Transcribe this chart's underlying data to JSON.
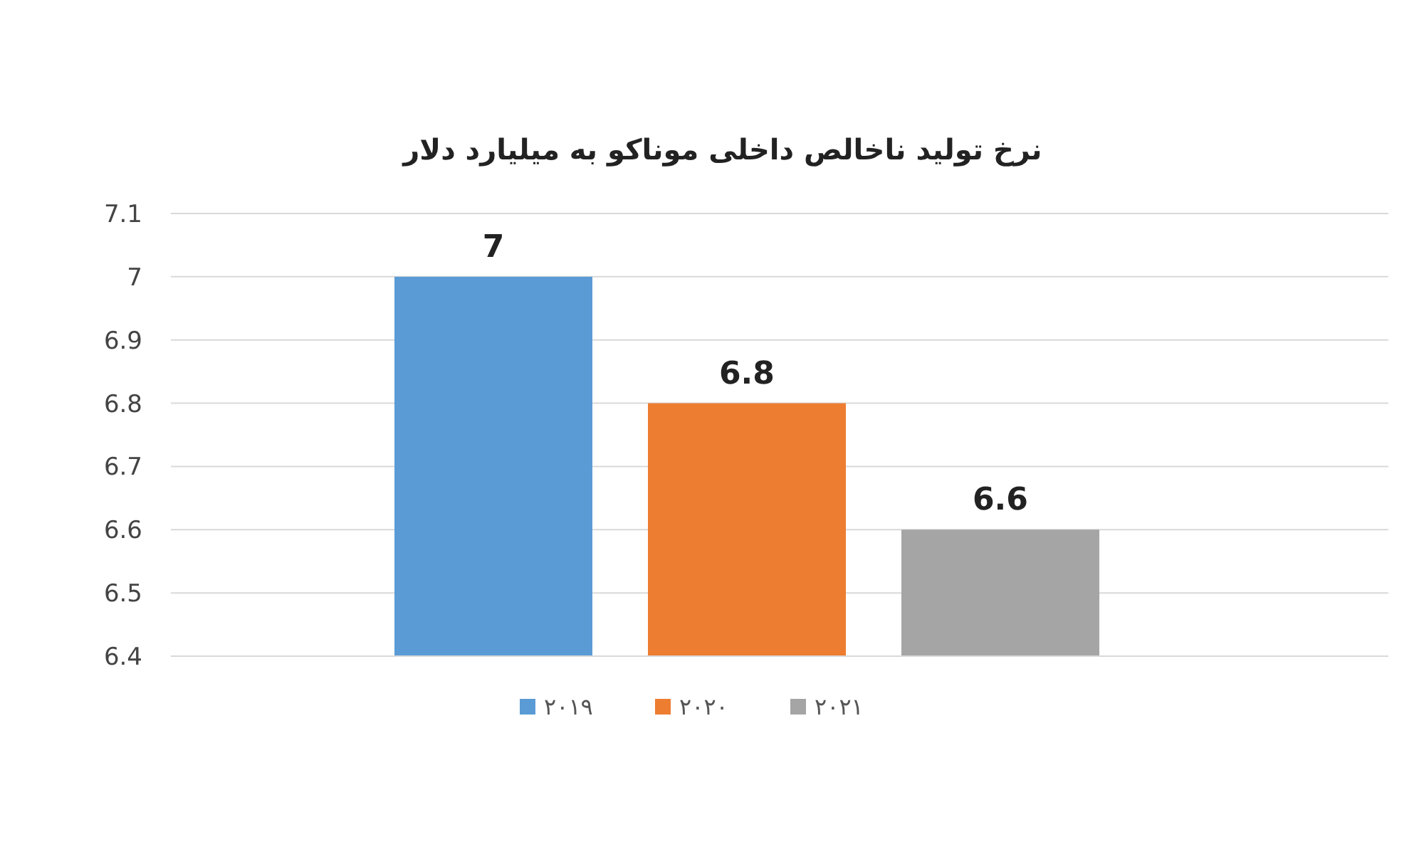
{
  "chart_data": {
    "type": "bar",
    "title": "نرخ تولید ناخالص داخلی موناکو به میلیارد دلار",
    "categories": [
      null
    ],
    "series": [
      {
        "name": "۲۰۱۹",
        "color": "#5b9bd5",
        "values": [
          7
        ]
      },
      {
        "name": "۲۰۲۰",
        "color": "#ed7d31",
        "values": [
          6.8
        ]
      },
      {
        "name": "۲۰۲۱",
        "color": "#a5a5a5",
        "values": [
          6.6
        ]
      }
    ],
    "ylim": [
      6.4,
      7.1
    ],
    "yticks": [
      6.4,
      6.5,
      6.6,
      6.7,
      6.8,
      6.9,
      7,
      7.1
    ],
    "grid": "y",
    "legend": "bottom",
    "data_labels": true
  }
}
